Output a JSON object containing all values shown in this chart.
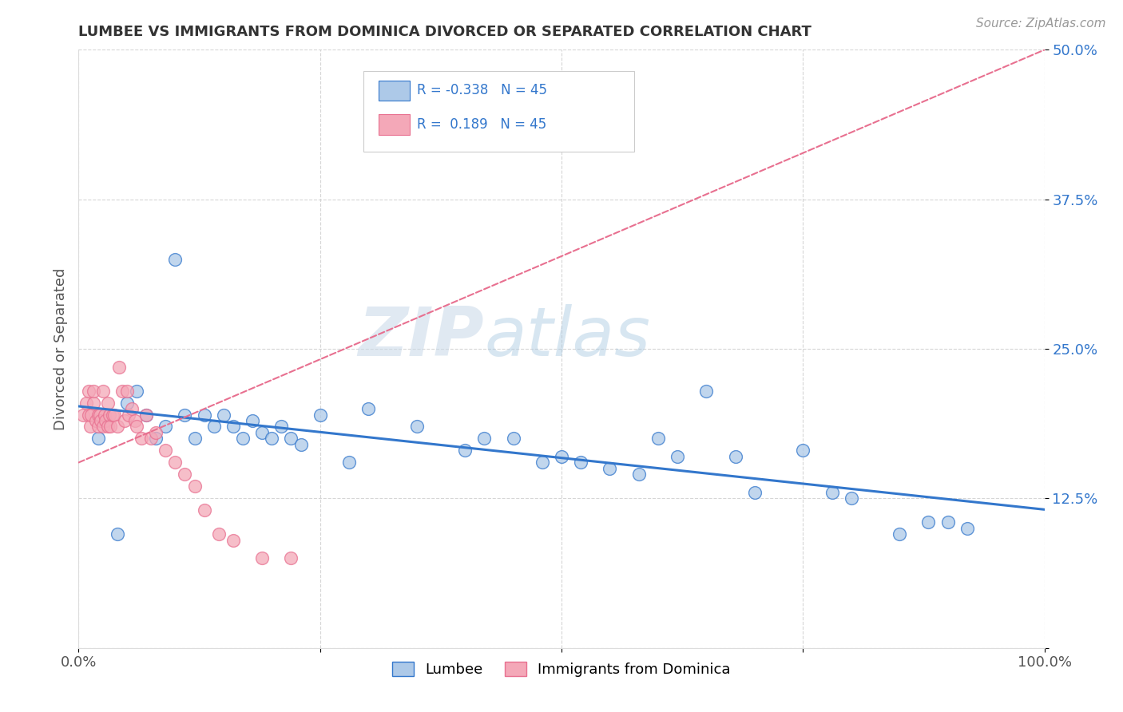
{
  "title": "LUMBEE VS IMMIGRANTS FROM DOMINICA DIVORCED OR SEPARATED CORRELATION CHART",
  "source_text": "Source: ZipAtlas.com",
  "ylabel": "Divorced or Separated",
  "legend_label1": "Lumbee",
  "legend_label2": "Immigrants from Dominica",
  "r_lumbee": -0.338,
  "n_lumbee": 45,
  "r_dominica": 0.189,
  "n_dominica": 45,
  "xlim": [
    0,
    1.0
  ],
  "ylim": [
    0,
    0.5
  ],
  "xticks": [
    0.0,
    0.25,
    0.5,
    0.75,
    1.0
  ],
  "xticklabels": [
    "0.0%",
    "",
    "",
    "",
    "100.0%"
  ],
  "yticks": [
    0.0,
    0.125,
    0.25,
    0.375,
    0.5
  ],
  "yticklabels": [
    "",
    "12.5%",
    "25.0%",
    "37.5%",
    "50.0%"
  ],
  "watermark_zip": "ZIP",
  "watermark_atlas": "atlas",
  "color_lumbee": "#adc9e8",
  "color_dominica": "#f4a8b8",
  "line_color_lumbee": "#3377cc",
  "line_color_dominica": "#e87090",
  "lumbee_x": [
    0.02,
    0.04,
    0.05,
    0.06,
    0.07,
    0.08,
    0.09,
    0.1,
    0.11,
    0.12,
    0.13,
    0.14,
    0.15,
    0.16,
    0.17,
    0.18,
    0.19,
    0.2,
    0.21,
    0.22,
    0.23,
    0.25,
    0.28,
    0.3,
    0.35,
    0.4,
    0.42,
    0.45,
    0.48,
    0.5,
    0.52,
    0.55,
    0.58,
    0.6,
    0.62,
    0.65,
    0.68,
    0.7,
    0.75,
    0.78,
    0.8,
    0.85,
    0.88,
    0.9,
    0.92
  ],
  "lumbee_y": [
    0.175,
    0.095,
    0.205,
    0.215,
    0.195,
    0.175,
    0.185,
    0.325,
    0.195,
    0.175,
    0.195,
    0.185,
    0.195,
    0.185,
    0.175,
    0.19,
    0.18,
    0.175,
    0.185,
    0.175,
    0.17,
    0.195,
    0.155,
    0.2,
    0.185,
    0.165,
    0.175,
    0.175,
    0.155,
    0.16,
    0.155,
    0.15,
    0.145,
    0.175,
    0.16,
    0.215,
    0.16,
    0.13,
    0.165,
    0.13,
    0.125,
    0.095,
    0.105,
    0.105,
    0.1
  ],
  "dominica_x": [
    0.005,
    0.008,
    0.01,
    0.01,
    0.012,
    0.013,
    0.015,
    0.015,
    0.018,
    0.02,
    0.02,
    0.022,
    0.023,
    0.025,
    0.025,
    0.027,
    0.028,
    0.03,
    0.03,
    0.032,
    0.033,
    0.035,
    0.037,
    0.04,
    0.042,
    0.045,
    0.048,
    0.05,
    0.052,
    0.055,
    0.058,
    0.06,
    0.065,
    0.07,
    0.075,
    0.08,
    0.09,
    0.1,
    0.11,
    0.12,
    0.13,
    0.145,
    0.16,
    0.19,
    0.22
  ],
  "dominica_y": [
    0.195,
    0.205,
    0.215,
    0.195,
    0.185,
    0.195,
    0.205,
    0.215,
    0.19,
    0.195,
    0.185,
    0.195,
    0.19,
    0.185,
    0.215,
    0.195,
    0.19,
    0.205,
    0.185,
    0.195,
    0.185,
    0.195,
    0.195,
    0.185,
    0.235,
    0.215,
    0.19,
    0.215,
    0.195,
    0.2,
    0.19,
    0.185,
    0.175,
    0.195,
    0.175,
    0.18,
    0.165,
    0.155,
    0.145,
    0.135,
    0.115,
    0.095,
    0.09,
    0.075,
    0.075
  ],
  "lumbee_trend": [
    0.195,
    0.095
  ],
  "dominica_trend_x": [
    0.0,
    1.0
  ],
  "dominica_trend_y": [
    0.155,
    0.5
  ]
}
